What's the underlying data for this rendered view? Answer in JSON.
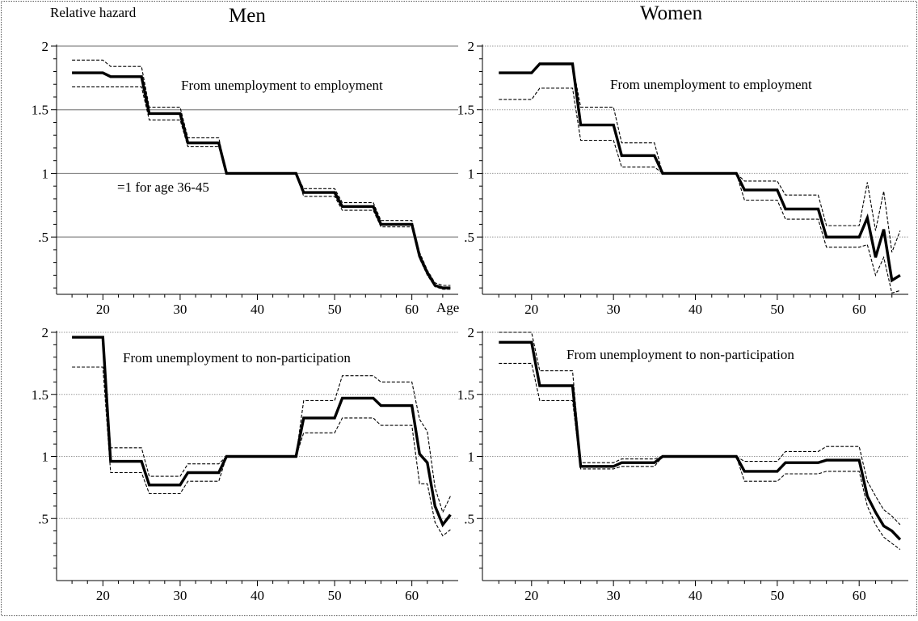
{
  "figure": {
    "panel_titles": [
      "Men",
      "Women"
    ],
    "ylabel": "Relative hazard",
    "xlabel": "Age"
  },
  "chart_data": [
    {
      "type": "line",
      "panel": "Men",
      "title": "Men",
      "annotation": "From unemployment to employment",
      "reference_note": "=1 for age 36-45",
      "ylabel": "Relative hazard",
      "xlabel": "Age",
      "xlim": [
        14,
        66
      ],
      "ylim": [
        0.05,
        2.0
      ],
      "xticks": [
        20,
        30,
        40,
        50,
        60
      ],
      "yticks": [
        0.5,
        1,
        1.5,
        2
      ],
      "ytick_labels": [
        ".5",
        "1",
        "1.5",
        "2"
      ],
      "grid": true,
      "x": [
        16,
        20,
        21,
        25,
        26,
        30,
        31,
        35,
        36,
        45,
        46,
        50,
        51,
        55,
        56,
        60,
        61,
        62,
        63,
        64,
        65
      ],
      "series": [
        {
          "role": "estimate",
          "values": [
            1.79,
            1.79,
            1.76,
            1.76,
            1.47,
            1.47,
            1.24,
            1.24,
            1.0,
            1.0,
            0.85,
            0.85,
            0.74,
            0.74,
            0.6,
            0.6,
            0.35,
            0.22,
            0.12,
            0.1,
            0.1
          ]
        },
        {
          "role": "upper",
          "values": [
            1.89,
            1.89,
            1.84,
            1.84,
            1.52,
            1.52,
            1.28,
            1.28,
            1.0,
            1.0,
            0.88,
            0.88,
            0.77,
            0.77,
            0.63,
            0.63,
            0.38,
            0.24,
            0.14,
            0.12,
            0.12
          ]
        },
        {
          "role": "lower",
          "values": [
            1.68,
            1.68,
            1.68,
            1.68,
            1.42,
            1.42,
            1.21,
            1.21,
            1.0,
            1.0,
            0.82,
            0.82,
            0.71,
            0.71,
            0.58,
            0.58,
            0.33,
            0.2,
            0.11,
            0.09,
            0.09
          ]
        }
      ]
    },
    {
      "type": "line",
      "panel": "Women",
      "title": "Women",
      "annotation": "From unemployment to employment",
      "xlim": [
        14,
        66
      ],
      "ylim": [
        0.05,
        2.0
      ],
      "xticks": [
        20,
        30,
        40,
        50,
        60
      ],
      "yticks": [
        0.5,
        1,
        1.5,
        2
      ],
      "ytick_labels": [
        ".5",
        "1",
        "1.5",
        "2"
      ],
      "grid": true,
      "x": [
        16,
        20,
        21,
        25,
        26,
        30,
        31,
        35,
        36,
        45,
        46,
        50,
        51,
        55,
        56,
        60,
        61,
        62,
        63,
        64,
        65
      ],
      "series": [
        {
          "role": "estimate",
          "values": [
            1.79,
            1.79,
            1.86,
            1.86,
            1.38,
            1.38,
            1.14,
            1.14,
            1.0,
            1.0,
            0.87,
            0.87,
            0.72,
            0.72,
            0.5,
            0.5,
            0.65,
            0.34,
            0.56,
            0.16,
            0.2
          ]
        },
        {
          "role": "upper",
          "values": [
            1.79,
            1.79,
            1.86,
            1.86,
            1.52,
            1.52,
            1.24,
            1.24,
            1.0,
            1.0,
            0.94,
            0.94,
            0.83,
            0.83,
            0.59,
            0.59,
            0.93,
            0.55,
            0.86,
            0.38,
            0.55
          ]
        },
        {
          "role": "lower",
          "values": [
            1.58,
            1.58,
            1.67,
            1.67,
            1.26,
            1.26,
            1.05,
            1.05,
            1.0,
            1.0,
            0.79,
            0.79,
            0.64,
            0.64,
            0.42,
            0.42,
            0.44,
            0.2,
            0.34,
            0.06,
            0.08
          ]
        }
      ]
    },
    {
      "type": "line",
      "panel": "Men",
      "annotation": "From unemployment to non-participation",
      "xlim": [
        14,
        66
      ],
      "ylim": [
        0.0,
        2.0
      ],
      "xticks": [
        20,
        30,
        40,
        50,
        60
      ],
      "yticks": [
        0.5,
        1,
        1.5,
        2
      ],
      "ytick_labels": [
        ".5",
        "1",
        "1.5",
        "2"
      ],
      "grid": true,
      "x": [
        16,
        20,
        21,
        25,
        26,
        30,
        31,
        35,
        36,
        45,
        46,
        50,
        51,
        55,
        56,
        60,
        61,
        62,
        63,
        64,
        65
      ],
      "series": [
        {
          "role": "estimate",
          "values": [
            1.96,
            1.96,
            0.96,
            0.96,
            0.77,
            0.77,
            0.87,
            0.87,
            1.0,
            1.0,
            1.31,
            1.31,
            1.47,
            1.47,
            1.41,
            1.41,
            1.02,
            0.95,
            0.6,
            0.45,
            0.53
          ]
        },
        {
          "role": "upper",
          "values": [
            1.96,
            1.96,
            1.07,
            1.07,
            0.84,
            0.84,
            0.94,
            0.94,
            1.0,
            1.0,
            1.45,
            1.45,
            1.65,
            1.65,
            1.6,
            1.6,
            1.3,
            1.2,
            0.75,
            0.55,
            0.68
          ]
        },
        {
          "role": "lower",
          "values": [
            1.72,
            1.72,
            0.87,
            0.87,
            0.7,
            0.7,
            0.8,
            0.8,
            1.0,
            1.0,
            1.19,
            1.19,
            1.31,
            1.31,
            1.25,
            1.25,
            0.78,
            0.78,
            0.47,
            0.36,
            0.41
          ]
        }
      ]
    },
    {
      "type": "line",
      "panel": "Women",
      "annotation": "From unemployment to non-participation",
      "xlim": [
        14,
        66
      ],
      "ylim": [
        0.0,
        2.0
      ],
      "xticks": [
        20,
        30,
        40,
        50,
        60
      ],
      "yticks": [
        0.5,
        1,
        1.5,
        2
      ],
      "ytick_labels": [
        ".5",
        "1",
        "1.5",
        "2"
      ],
      "grid": true,
      "x": [
        16,
        20,
        21,
        25,
        26,
        30,
        31,
        35,
        36,
        45,
        46,
        50,
        51,
        55,
        56,
        60,
        61,
        62,
        63,
        64,
        65
      ],
      "series": [
        {
          "role": "estimate",
          "values": [
            1.92,
            1.92,
            1.57,
            1.57,
            0.92,
            0.92,
            0.95,
            0.95,
            1.0,
            1.0,
            0.88,
            0.88,
            0.95,
            0.95,
            0.97,
            0.97,
            0.68,
            0.55,
            0.44,
            0.4,
            0.33
          ]
        },
        {
          "role": "upper",
          "values": [
            2.0,
            2.0,
            1.69,
            1.69,
            0.95,
            0.95,
            0.98,
            0.98,
            1.0,
            1.0,
            0.96,
            0.96,
            1.04,
            1.04,
            1.08,
            1.08,
            0.8,
            0.68,
            0.57,
            0.52,
            0.45
          ]
        },
        {
          "role": "lower",
          "values": [
            1.75,
            1.75,
            1.45,
            1.45,
            0.9,
            0.9,
            0.92,
            0.92,
            1.0,
            1.0,
            0.8,
            0.8,
            0.86,
            0.86,
            0.88,
            0.88,
            0.6,
            0.45,
            0.35,
            0.3,
            0.25
          ]
        }
      ]
    }
  ]
}
